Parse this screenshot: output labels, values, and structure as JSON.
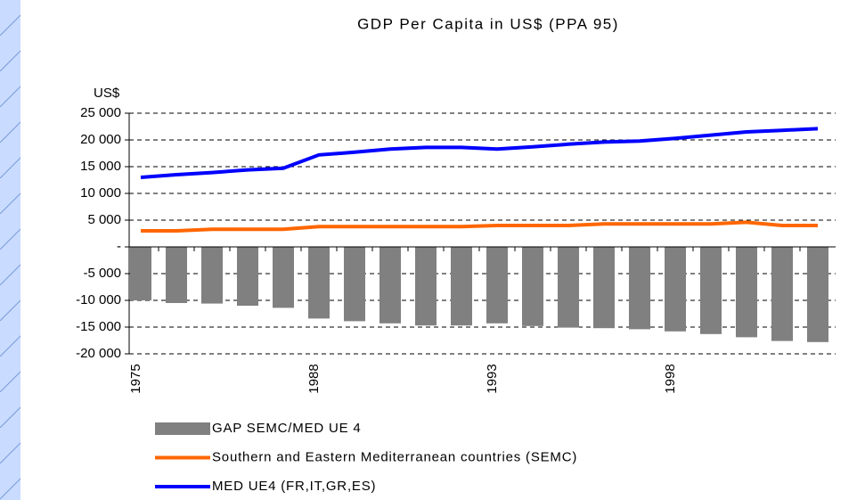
{
  "chart_data": {
    "type": "bar-line",
    "title": "GDP Per Capita in US$ (PPA 95)",
    "y_label": "US$",
    "categories": [
      "1975",
      null,
      null,
      null,
      null,
      "1988",
      null,
      null,
      null,
      null,
      "1993",
      null,
      null,
      null,
      null,
      "1998",
      null,
      null,
      null,
      null
    ],
    "series": [
      {
        "name": "GAP SEMC/MED UE 4",
        "type": "bar",
        "color": "#808080",
        "values": [
          -10000,
          -10500,
          -10600,
          -11000,
          -11400,
          -13400,
          -13900,
          -14300,
          -14700,
          -14700,
          -14300,
          -14800,
          -15100,
          -15200,
          -15400,
          -15800,
          -16300,
          -16900,
          -17600,
          -17800
        ]
      },
      {
        "name": "Southern and Eastern Mediterranean countries (SEMC)",
        "type": "line",
        "color": "#ff6600",
        "values": [
          3000,
          3000,
          3300,
          3300,
          3300,
          3800,
          3800,
          3800,
          3800,
          3800,
          4000,
          4000,
          4000,
          4300,
          4300,
          4300,
          4300,
          4600,
          4000,
          4000
        ]
      },
      {
        "name": "MED UE4 (FR,IT,GR,ES)",
        "type": "line",
        "color": "#0000ff",
        "values": [
          13000,
          13500,
          13900,
          14400,
          14700,
          17200,
          17700,
          18300,
          18600,
          18600,
          18300,
          18700,
          19200,
          19600,
          19800,
          20300,
          20900,
          21500,
          21800,
          22100
        ]
      }
    ],
    "ylim": [
      -20000,
      25000
    ],
    "yticks": [
      {
        "value": 25000,
        "label": "25 000"
      },
      {
        "value": 20000,
        "label": "20 000"
      },
      {
        "value": 15000,
        "label": "15 000"
      },
      {
        "value": 10000,
        "label": "10 000"
      },
      {
        "value": 5000,
        "label": "5 000"
      },
      {
        "value": 0,
        "label": "-"
      },
      {
        "value": -5000,
        "label": "-5 000"
      },
      {
        "value": -10000,
        "label": "-10 000"
      },
      {
        "value": -15000,
        "label": "-15 000"
      },
      {
        "value": -20000,
        "label": "-20 000"
      }
    ],
    "grid": true
  }
}
